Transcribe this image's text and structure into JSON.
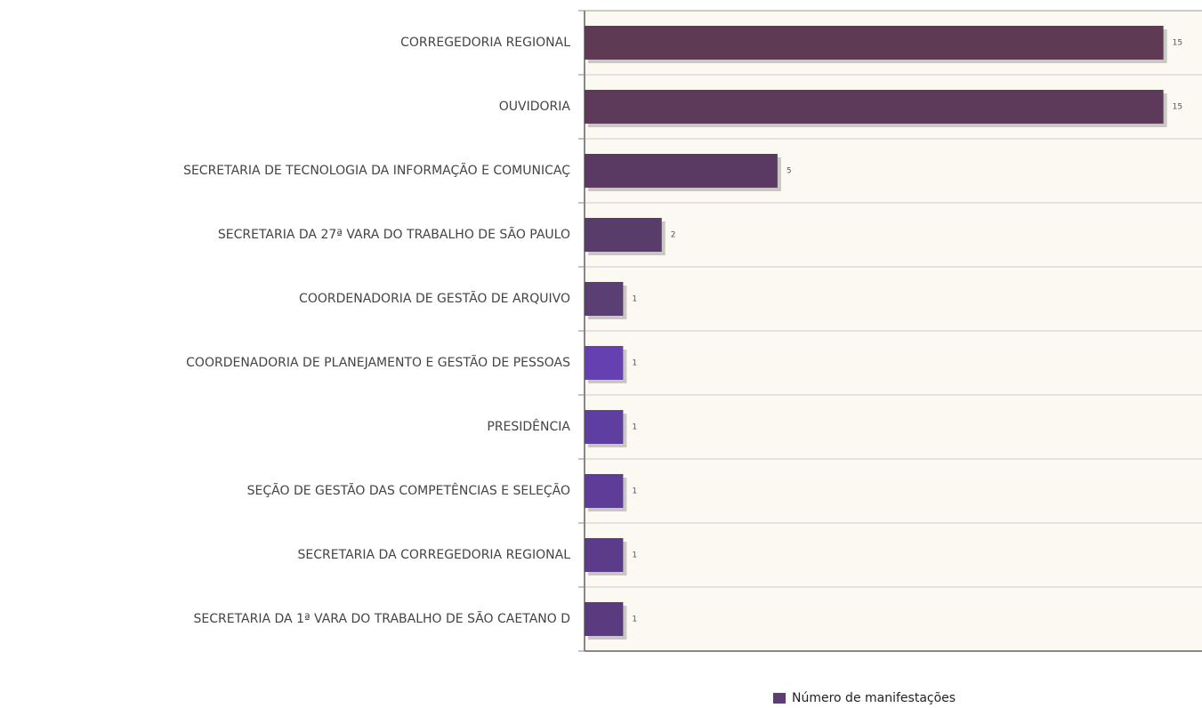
{
  "chart_data": {
    "type": "bar",
    "orientation": "horizontal",
    "categories": [
      "CORREGEDORIA REGIONAL",
      "OUVIDORIA",
      "SECRETARIA DE TECNOLOGIA DA INFORMAÇÃO E COMUNICAÇ",
      "SECRETARIA DA 27ª VARA DO TRABALHO DE SÃO PAULO",
      "COORDENADORIA DE GESTÃO DE ARQUIVO",
      "COORDENADORIA DE PLANEJAMENTO E GESTÃO DE PESSOAS",
      "PRESIDÊNCIA",
      "SEÇÃO DE GESTÃO DAS COMPETÊNCIAS E SELEÇÃO",
      "SECRETARIA DA CORREGEDORIA REGIONAL",
      "SECRETARIA DA 1ª VARA DO TRABALHO DE SÃO CAETANO D"
    ],
    "series": [
      {
        "name": "Número de manifestações",
        "color": "#5e3d75",
        "values": [
          15,
          15,
          5,
          2,
          1,
          1,
          1,
          1,
          1,
          1
        ],
        "colors": [
          "#5e3a55",
          "#5d3a5a",
          "#5a3a62",
          "#583c6a",
          "#5a3e74",
          "#6440b0",
          "#5f3ea2",
          "#5e3d98",
          "#5c3c8a",
          "#5b3b80"
        ]
      }
    ],
    "xlim": [
      0,
      16
    ],
    "legend": "bottom"
  }
}
